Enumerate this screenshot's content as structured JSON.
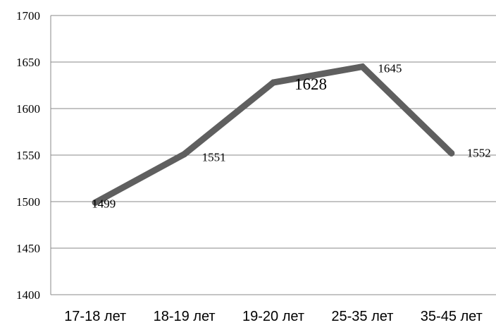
{
  "chart_data": {
    "type": "line",
    "categories": [
      "17-18 лет",
      "18-19 лет",
      "19-20 лет",
      "25-35 лет",
      "35-45 лет"
    ],
    "series": [
      {
        "values": [
          1499,
          1551,
          1628,
          1645,
          1552
        ],
        "color": "#5f5f5f"
      }
    ],
    "data_labels": [
      "1499",
      "1551",
      "1628",
      "1645",
      "1552"
    ],
    "ylim": [
      1400,
      1700
    ],
    "yticks": [
      1400,
      1450,
      1500,
      1550,
      1600,
      1650,
      1700
    ],
    "grid": true,
    "legend": "none"
  }
}
